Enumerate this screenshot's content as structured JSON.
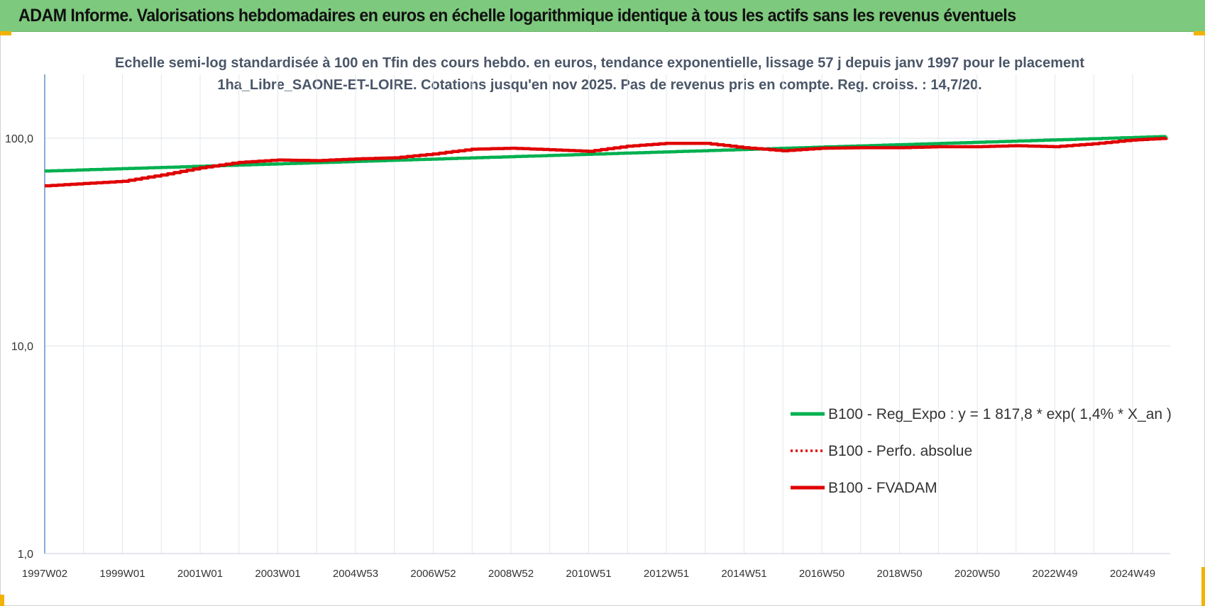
{
  "header": {
    "title": "ADAM Informe. Valorisations hebdomadaires en euros en échelle logarithmique identique à tous les actifs sans les revenus éventuels"
  },
  "chart_data": {
    "type": "line",
    "title": "Echelle semi-log standardisée à 100 en Tfin des cours hebdo. en euros, tendance exponentielle, lissage 57 j depuis janv 1997 pour le placement 1ha_Libre_SAONE-ET-LOIRE. Cotations jusqu'en nov 2025. Pas de revenus pris en compte. Reg. croiss. : 14,7/20.",
    "xlabel": "",
    "ylabel": "",
    "y_scale": "log",
    "ylim": [
      1,
      200
    ],
    "y_ticks": [
      "1,0",
      "10,0",
      "100,0"
    ],
    "y_tick_values": [
      1,
      10,
      100
    ],
    "x_ticks": [
      "1997W02",
      "1999W01",
      "2001W01",
      "2003W01",
      "2004W53",
      "2006W52",
      "2008W52",
      "2010W51",
      "2012W51",
      "2014W51",
      "2016W50",
      "2018W50",
      "2020W50",
      "2022W49",
      "2024W49"
    ],
    "xlim": [
      1997.0,
      2026.0
    ],
    "grid": true,
    "legend_position": "bottom-right",
    "series": [
      {
        "name": "B100 - Reg_Expo : y = 1 817,8 * exp( 1,4% *  X_an )",
        "color": "#00b050",
        "style": "solid",
        "x": [
          1997.0,
          2025.9
        ],
        "y": [
          69.5,
          102.0
        ]
      },
      {
        "name": "B100 - Perfo. absolue",
        "color": "#e00000",
        "style": "dotted",
        "x": [],
        "y": []
      },
      {
        "name": "B100 - FVADAM",
        "color": "#e00000",
        "style": "solid",
        "x": [
          1997.0,
          1998.0,
          1999.0,
          2000.0,
          2001.0,
          2002.0,
          2003.0,
          2004.0,
          2005.0,
          2006.0,
          2007.0,
          2008.0,
          2009.0,
          2010.0,
          2011.0,
          2012.0,
          2013.0,
          2014.0,
          2015.0,
          2016.0,
          2017.0,
          2018.0,
          2019.0,
          2020.0,
          2021.0,
          2022.0,
          2023.0,
          2024.0,
          2025.0,
          2025.9
        ],
        "y": [
          59,
          60.5,
          62,
          66.5,
          72,
          76.5,
          78.5,
          78,
          79.5,
          80.5,
          84,
          88.5,
          89.5,
          88,
          86.5,
          91.5,
          94.5,
          94.5,
          90,
          87,
          89.5,
          90,
          90,
          91,
          91,
          92,
          91,
          94,
          98,
          100
        ]
      }
    ]
  }
}
